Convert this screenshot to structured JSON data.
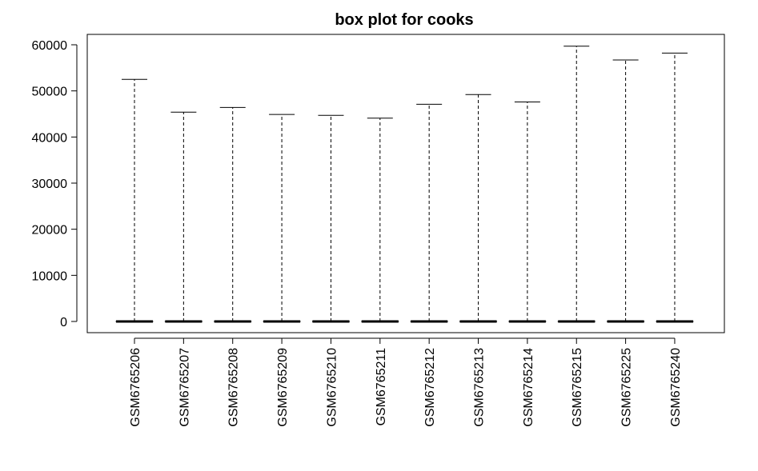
{
  "chart_data": {
    "type": "box",
    "title": "box plot for cooks",
    "xlabel": "",
    "ylabel": "",
    "ylim": [
      -2000,
      62000
    ],
    "y_ticks": [
      0,
      10000,
      20000,
      30000,
      40000,
      50000,
      60000
    ],
    "y_tick_labels": [
      "0",
      "10000",
      "20000",
      "30000",
      "40000",
      "50000",
      "60000"
    ],
    "grid": false,
    "categories": [
      "GSM6765206",
      "GSM6765207",
      "GSM6765208",
      "GSM6765209",
      "GSM6765210",
      "GSM6765211",
      "GSM6765212",
      "GSM6765213",
      "GSM6765214",
      "GSM6765215",
      "GSM6765225",
      "GSM6765240"
    ],
    "boxes": [
      {
        "min": 0,
        "q1": 0,
        "median": 0,
        "q3": 0,
        "max": 52500
      },
      {
        "min": 0,
        "q1": 0,
        "median": 0,
        "q3": 0,
        "max": 45400
      },
      {
        "min": 0,
        "q1": 0,
        "median": 0,
        "q3": 0,
        "max": 46400
      },
      {
        "min": 0,
        "q1": 0,
        "median": 0,
        "q3": 0,
        "max": 44900
      },
      {
        "min": 0,
        "q1": 0,
        "median": 0,
        "q3": 0,
        "max": 44700
      },
      {
        "min": 0,
        "q1": 0,
        "median": 0,
        "q3": 0,
        "max": 44100
      },
      {
        "min": 0,
        "q1": 0,
        "median": 0,
        "q3": 0,
        "max": 47100
      },
      {
        "min": 0,
        "q1": 0,
        "median": 0,
        "q3": 0,
        "max": 49200
      },
      {
        "min": 0,
        "q1": 0,
        "median": 0,
        "q3": 0,
        "max": 47600
      },
      {
        "min": 0,
        "q1": 0,
        "median": 0,
        "q3": 0,
        "max": 59700
      },
      {
        "min": 0,
        "q1": 0,
        "median": 0,
        "q3": 0,
        "max": 56700
      },
      {
        "min": 0,
        "q1": 0,
        "median": 0,
        "q3": 0,
        "max": 58200
      }
    ]
  }
}
